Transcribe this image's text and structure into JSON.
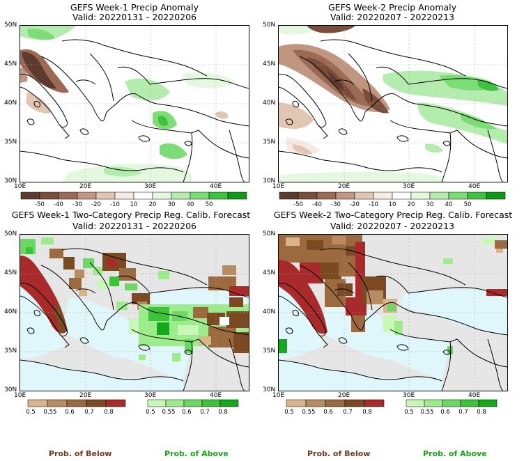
{
  "panels": [
    {
      "id": "w1anom",
      "line1": "GEFS Week-1 Precip Anomaly",
      "line2": "Valid: 20220131 - 20220206"
    },
    {
      "id": "w2anom",
      "line1": "GEFS Week-2 Precip Anomaly",
      "line2": "Valid: 20220207 - 20220213"
    },
    {
      "id": "w1cat",
      "line1": "GEFS Week-1 Two-Category Precip Reg. Calib. Forecast",
      "line2": "Valid: 20220131 - 20220206"
    },
    {
      "id": "w2cat",
      "line1": "GEFS Week-2 Two-Category Precip Reg. Calib. Forecast",
      "line2": "Valid: 20220207 - 20220213"
    }
  ],
  "axes": {
    "lat_ticks": [
      "50N",
      "45N",
      "40N",
      "35N",
      "30N"
    ],
    "lon_ticks": [
      "10E",
      "20E",
      "30E",
      "40E"
    ],
    "lat_range": [
      30,
      50
    ],
    "lon_range": [
      10,
      45
    ]
  },
  "anomaly_colorbar": {
    "ticks": [
      "-50",
      "-40",
      "-30",
      "-20",
      "-10",
      "10",
      "20",
      "30",
      "40",
      "50"
    ],
    "colors": [
      "#5c3a2e",
      "#7a4e3a",
      "#9c6a54",
      "#c09680",
      "#e2c6b4",
      "#f6ebe4",
      "#ffffff",
      "#e4f8e0",
      "#b4ecae",
      "#7cdc76",
      "#3ec240",
      "#0c9a14"
    ]
  },
  "below_colorbar": {
    "ticks": [
      "0.5",
      "0.55",
      "0.6",
      "0.7",
      "0.8"
    ],
    "colors": [
      "#d7b48a",
      "#b88c62",
      "#9c6a3f",
      "#7c4a22",
      "#a82a2a"
    ]
  },
  "above_colorbar": {
    "ticks": [
      "0.5",
      "0.55",
      "0.6",
      "0.7",
      "0.8"
    ],
    "colors": [
      "#c8f8b8",
      "#9cec8c",
      "#6ad862",
      "#3cc438",
      "#14a81a"
    ]
  },
  "legend_titles": {
    "below": "Prob. of Below",
    "above": "Prob. of Above"
  },
  "colors": {
    "below_title": "#6b3a1e",
    "above_title": "#16a316",
    "sea": "#dff6fa",
    "land_nodata": "#e6e6e6"
  }
}
